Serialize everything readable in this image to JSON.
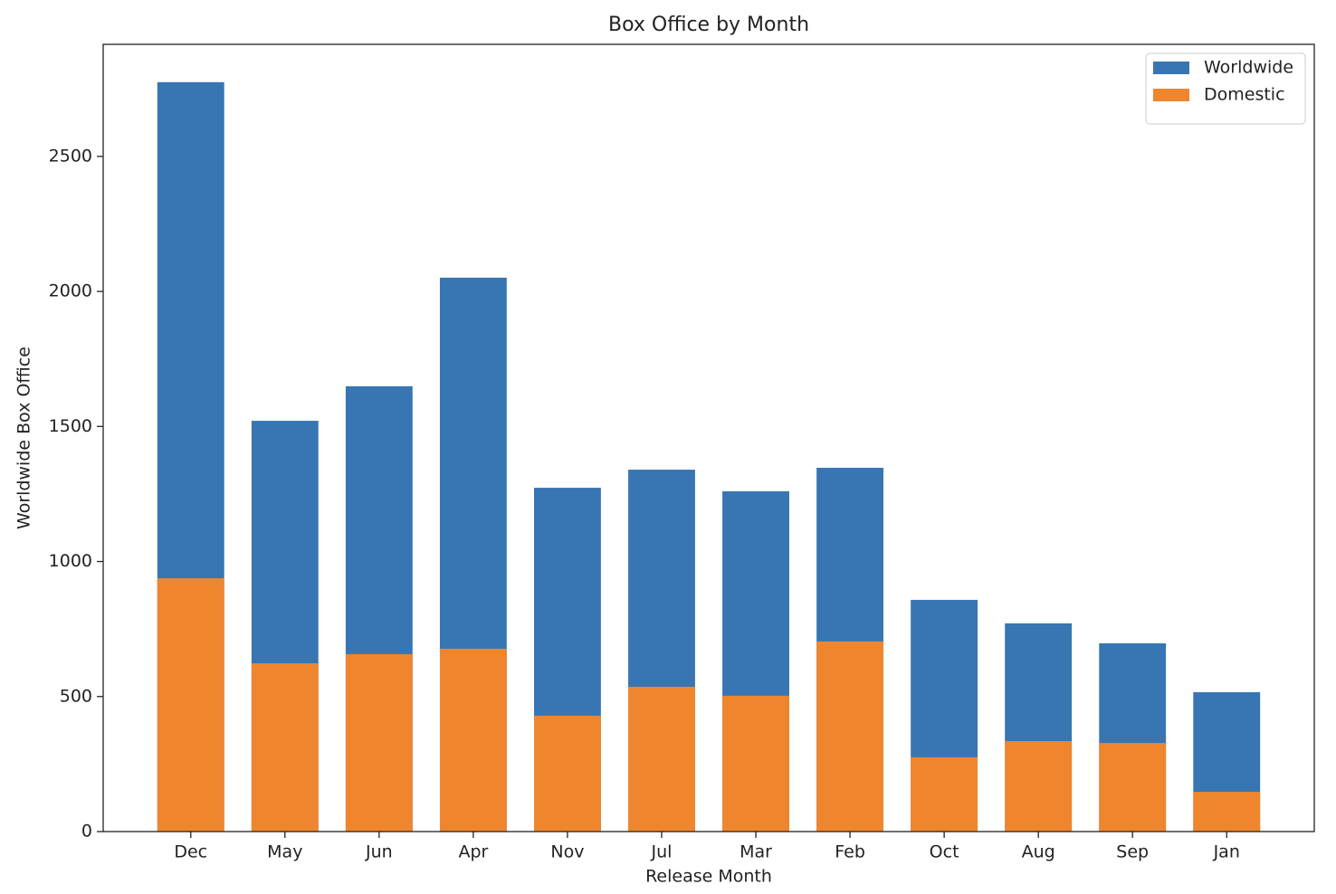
{
  "chart_data": {
    "type": "bar",
    "title": "Box Office by Month",
    "x_label": "Release Month",
    "y_label": "Worldwide Box Office",
    "categories": [
      "Dec",
      "May",
      "Jun",
      "Apr",
      "Nov",
      "Jul",
      "Mar",
      "Feb",
      "Oct",
      "Aug",
      "Sep",
      "Jan"
    ],
    "series": [
      {
        "name": "Worldwide",
        "color": "#3776b2",
        "values": [
          2775,
          1521,
          1649,
          2051,
          1273,
          1340,
          1260,
          1347,
          858,
          771,
          697,
          516
        ]
      },
      {
        "name": "Domestic",
        "color": "#ef862e",
        "values": [
          938,
          623,
          657,
          677,
          429,
          536,
          503,
          704,
          275,
          335,
          328,
          147
        ]
      }
    ],
    "ylim": [
      0,
      2915
    ],
    "yticks": [
      0,
      500,
      1000,
      1500,
      2000,
      2500
    ],
    "legend": "upper right"
  }
}
